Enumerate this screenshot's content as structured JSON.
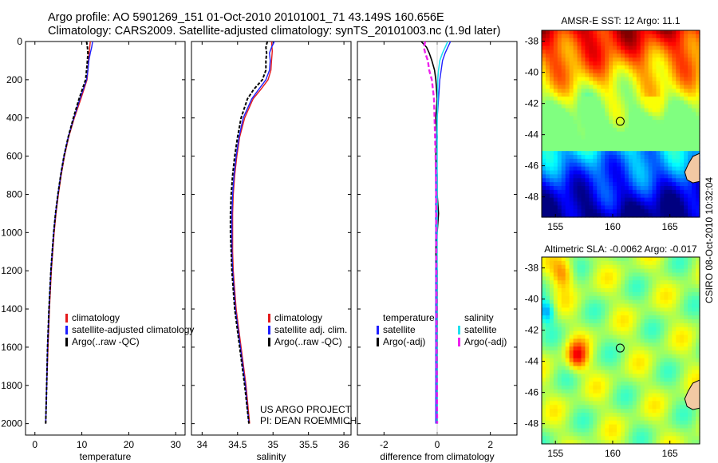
{
  "header": {
    "line1": "Argo profile: AO 5901269_151 01-Oct-2010 20101001_71 43.149S 160.656E",
    "line2": "Climatology: CARS2009. Satellite-adjusted climatology: synTS_20101003.nc (1.9d later)"
  },
  "side_label": "CSIRO 08-Oct-2010 10:32:04",
  "colors": {
    "clim": "#e41a1c",
    "sat": "#1f1fff",
    "argo": "#000000",
    "cyan": "#22e0ee",
    "magenta": "#ee22ee"
  },
  "chart_data": [
    {
      "type": "line",
      "name": "temperature-profile",
      "xlabel": "temperature",
      "ylabel": "",
      "xlim": [
        -2,
        32
      ],
      "ylim": [
        2060,
        0
      ],
      "xticks": [
        0,
        10,
        20,
        30
      ],
      "xtick_labels": [
        "0",
        "10",
        "20",
        "30"
      ],
      "yticks": [
        0,
        200,
        400,
        600,
        800,
        1000,
        1200,
        1400,
        1600,
        1800,
        2000
      ],
      "ytick_labels": [
        "0",
        "200",
        "400",
        "600",
        "800",
        "1000",
        "1200",
        "1400",
        "1600",
        "1800",
        "2000"
      ],
      "series": [
        {
          "name": "climatology",
          "color": "#e41a1c",
          "width": 1.4,
          "dash": "",
          "depth": [
            0,
            50,
            100,
            150,
            200,
            300,
            400,
            500,
            600,
            700,
            800,
            900,
            1000,
            1100,
            1200,
            1300,
            1400,
            1600,
            1800,
            2000
          ],
          "values": [
            11.8,
            11.6,
            11.4,
            11.3,
            11.1,
            9.8,
            8.4,
            7.2,
            6.3,
            5.6,
            5.0,
            4.5,
            4.1,
            3.8,
            3.5,
            3.3,
            3.1,
            2.8,
            2.5,
            2.3
          ]
        },
        {
          "name": "satellite-adjusted climatology",
          "color": "#1f1fff",
          "width": 1.4,
          "dash": "",
          "depth": [
            0,
            30,
            60,
            100,
            150,
            200,
            300,
            400,
            500,
            600,
            700,
            800,
            900,
            1000,
            1100,
            1200,
            1300,
            1400,
            1600,
            1800,
            2000
          ],
          "values": [
            12.3,
            12.1,
            11.8,
            11.5,
            11.3,
            11.0,
            9.6,
            8.3,
            7.1,
            6.2,
            5.5,
            4.9,
            4.4,
            4.0,
            3.7,
            3.4,
            3.2,
            3.0,
            2.7,
            2.5,
            2.3
          ]
        },
        {
          "name": "Argo(..raw -QC)",
          "color": "#000000",
          "width": 2.0,
          "dash": "4,2",
          "depth": [
            0,
            30,
            60,
            100,
            150,
            200,
            300,
            400,
            500,
            600,
            700,
            800,
            900,
            1000,
            1100,
            1200,
            1300,
            1400,
            1600,
            1800,
            2000
          ],
          "values": [
            11.0,
            11.2,
            11.3,
            11.2,
            11.0,
            10.8,
            9.4,
            8.2,
            7.1,
            6.2,
            5.5,
            4.9,
            4.4,
            4.0,
            3.7,
            3.4,
            3.2,
            3.0,
            2.7,
            2.5,
            2.3
          ]
        }
      ],
      "legend": {
        "position": "lower-right",
        "entries": [
          {
            "label": "climatology",
            "color": "#e41a1c"
          },
          {
            "label": "satellite-adjusted climatology",
            "color": "#1f1fff"
          },
          {
            "label": "Argo(..raw -QC)",
            "color": "#000000"
          }
        ]
      }
    },
    {
      "type": "line",
      "name": "salinity-profile",
      "xlabel": "salinity",
      "ylabel": "",
      "xlim": [
        33.85,
        36.1
      ],
      "ylim": [
        2060,
        0
      ],
      "xticks": [
        34,
        34.5,
        35,
        35.5,
        36
      ],
      "xtick_labels": [
        "34",
        "34.5",
        "35",
        "35.5",
        "36"
      ],
      "series": [
        {
          "name": "climatology",
          "color": "#e41a1c",
          "width": 1.4,
          "dash": "",
          "depth": [
            0,
            50,
            100,
            150,
            200,
            250,
            300,
            400,
            500,
            600,
            700,
            800,
            900,
            1000,
            1100,
            1200,
            1300,
            1400,
            1600,
            1800,
            2000
          ],
          "values": [
            34.98,
            34.99,
            34.98,
            34.97,
            34.93,
            34.83,
            34.72,
            34.6,
            34.53,
            34.49,
            34.46,
            34.44,
            34.43,
            34.43,
            34.43,
            34.44,
            34.46,
            34.48,
            34.55,
            34.62,
            34.67
          ]
        },
        {
          "name": "satellite adj. clim.",
          "color": "#1f1fff",
          "width": 1.4,
          "dash": "",
          "depth": [
            0,
            30,
            60,
            100,
            150,
            200,
            250,
            300,
            400,
            500,
            600,
            700,
            800,
            900,
            1000,
            1100,
            1200,
            1300,
            1400,
            1600,
            1800,
            2000
          ],
          "values": [
            35.02,
            34.98,
            34.95,
            34.96,
            34.95,
            34.9,
            34.8,
            34.7,
            34.58,
            34.52,
            34.48,
            34.45,
            34.43,
            34.42,
            34.42,
            34.42,
            34.43,
            34.45,
            34.47,
            34.54,
            34.61,
            34.66
          ]
        },
        {
          "name": "Argo(..raw -QC)",
          "color": "#000000",
          "width": 2.0,
          "dash": "4,2",
          "depth": [
            0,
            30,
            60,
            100,
            150,
            200,
            250,
            300,
            400,
            500,
            600,
            700,
            800,
            900,
            1000,
            1100,
            1200,
            1300,
            1400,
            1600,
            1800,
            2000
          ],
          "values": [
            34.92,
            34.9,
            34.91,
            34.9,
            34.9,
            34.85,
            34.73,
            34.64,
            34.55,
            34.5,
            34.46,
            34.43,
            34.41,
            34.4,
            34.4,
            34.41,
            34.42,
            34.44,
            34.46,
            34.53,
            34.6,
            34.66
          ]
        }
      ],
      "legend": {
        "position": "lower-right",
        "entries": [
          {
            "label": "climatology",
            "color": "#e41a1c"
          },
          {
            "label": "satellite adj. clim.",
            "color": "#1f1fff"
          },
          {
            "label": "Argo(..raw -QC)",
            "color": "#000000"
          }
        ]
      },
      "annotations": [
        "US ARGO PROJECT",
        "PI: DEAN ROEMMICH"
      ]
    },
    {
      "type": "line",
      "name": "difference-profile",
      "xlabel": "difference from climatology",
      "ylabel": "",
      "xlim": [
        -3,
        3
      ],
      "ylim": [
        2060,
        0
      ],
      "xticks": [
        -2,
        0,
        2
      ],
      "xtick_labels": [
        "-2",
        "0",
        "2"
      ],
      "series": [
        {
          "name": "temperature satellite",
          "color": "#1f1fff",
          "width": 1.4,
          "dash": "",
          "depth": [
            0,
            30,
            60,
            100,
            150,
            200,
            300,
            400,
            600,
            800,
            1000,
            1200,
            1400,
            1600,
            1800,
            2000
          ],
          "values": [
            0.5,
            0.4,
            0.3,
            0.2,
            0.15,
            0.1,
            0.05,
            0.0,
            -0.05,
            -0.05,
            -0.05,
            -0.05,
            -0.05,
            -0.05,
            -0.05,
            -0.05
          ]
        },
        {
          "name": "temperature Argo(-adj)",
          "color": "#000000",
          "width": 1.6,
          "dash": "",
          "depth": [
            0,
            30,
            60,
            100,
            150,
            200,
            300,
            400,
            500,
            600,
            700,
            800,
            900,
            1000,
            1100,
            1200,
            1400,
            1600,
            1800,
            2000
          ],
          "values": [
            -0.6,
            -0.4,
            -0.3,
            -0.2,
            -0.1,
            -0.05,
            0.0,
            -0.05,
            0.0,
            -0.05,
            0.0,
            0.0,
            0.05,
            0.0,
            -0.05,
            0.0,
            0.0,
            0.0,
            0.0,
            0.0
          ]
        },
        {
          "name": "salinity satellite",
          "color": "#22e0ee",
          "width": 1.6,
          "dash": "",
          "depth": [
            0,
            30,
            60,
            100,
            150,
            200,
            300,
            400,
            600,
            800,
            1000,
            1200,
            1400,
            1600,
            1800,
            2000
          ],
          "values": [
            0.4,
            0.3,
            0.2,
            0.1,
            0.05,
            0.02,
            0.02,
            0.0,
            0.0,
            0.0,
            0.0,
            0.0,
            0.0,
            0.0,
            0.0,
            0.0
          ]
        },
        {
          "name": "salinity Argo(-adj)",
          "color": "#ee22ee",
          "width": 2.4,
          "dash": "6,3",
          "depth": [
            0,
            30,
            60,
            100,
            150,
            200,
            300,
            400,
            600,
            800,
            1000,
            1200,
            1400,
            1600,
            1800,
            2000
          ],
          "values": [
            -0.45,
            -0.5,
            -0.45,
            -0.35,
            -0.3,
            -0.2,
            -0.12,
            -0.1,
            -0.06,
            -0.04,
            -0.03,
            -0.03,
            -0.02,
            -0.02,
            -0.01,
            0.0
          ]
        }
      ],
      "legend": {
        "position": "lower-right",
        "entries": [
          {
            "label": "temperature",
            "color": ""
          },
          {
            "label": "salinity",
            "color": ""
          },
          {
            "label": "satellite",
            "color": "#1f1fff"
          },
          {
            "label": "satellite",
            "color": "#22e0ee"
          },
          {
            "label": "Argo(-adj)",
            "color": "#000000"
          },
          {
            "label": "Argo(-adj)",
            "color": "#ee22ee"
          }
        ]
      }
    },
    {
      "type": "heatmap",
      "name": "sst-map",
      "title": "AMSR-E SST: 12 Argo: 11.1",
      "xlim": [
        153.8,
        167.6
      ],
      "ylim": [
        -49.3,
        -37.3
      ],
      "xticks": [
        155,
        160,
        165
      ],
      "xtick_labels": [
        "155",
        "160",
        "165"
      ],
      "yticks": [
        -38,
        -40,
        -42,
        -44,
        -46,
        -48
      ],
      "ytick_labels": [
        "-38",
        "-40",
        "-42",
        "-44",
        "-46",
        "-48"
      ],
      "marker": {
        "lon": 160.656,
        "lat": -43.149
      }
    },
    {
      "type": "heatmap",
      "name": "sla-map",
      "title": "Altimetric SLA: -0.0062 Argo: -0.017",
      "xlim": [
        153.8,
        167.6
      ],
      "ylim": [
        -49.3,
        -37.3
      ],
      "xticks": [
        155,
        160,
        165
      ],
      "xtick_labels": [
        "155",
        "160",
        "165"
      ],
      "yticks": [
        -38,
        -40,
        -42,
        -44,
        -46,
        -48
      ],
      "ytick_labels": [
        "-38",
        "-40",
        "-42",
        "-44",
        "-46",
        "-48"
      ],
      "marker": {
        "lon": 160.656,
        "lat": -43.149
      }
    }
  ]
}
